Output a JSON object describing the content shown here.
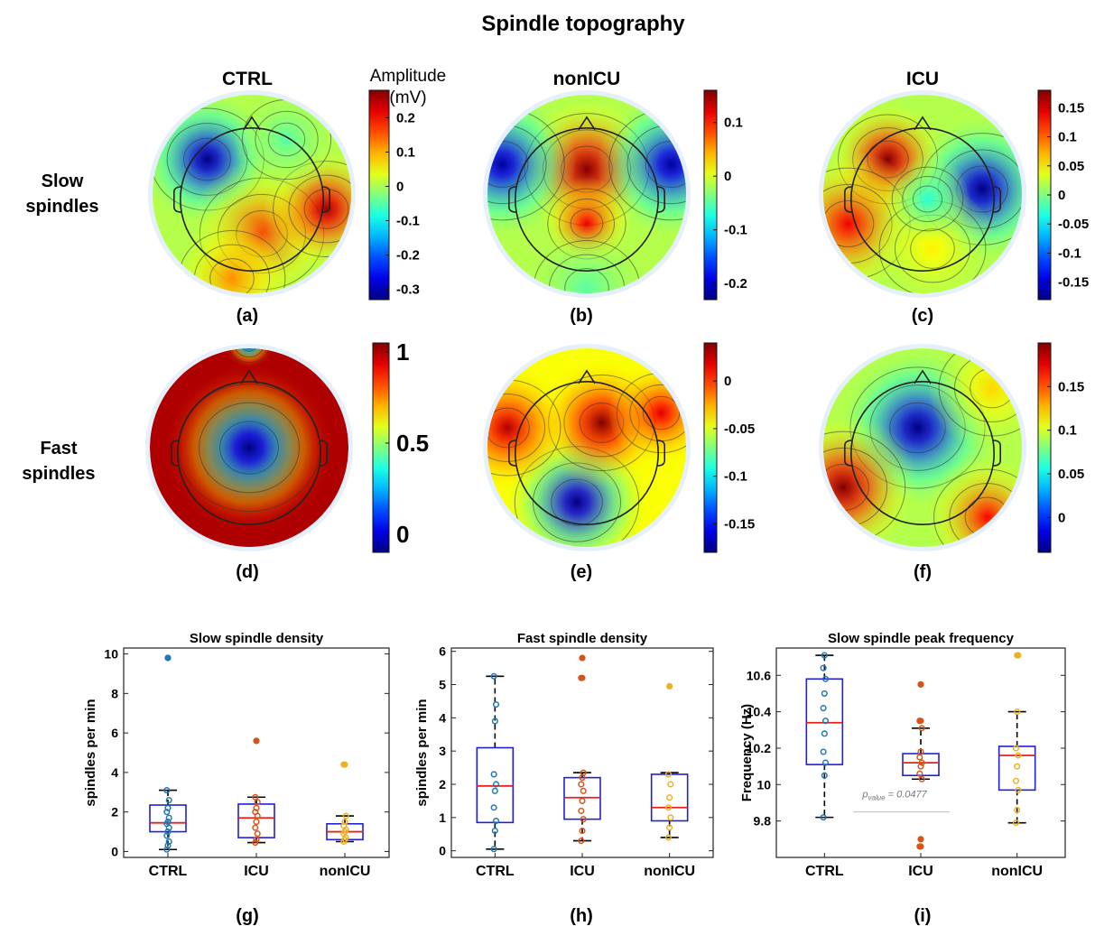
{
  "title": "Spindle topography",
  "colorbar_title": "Amplitude (mV)",
  "colors": {
    "box": "#1f1fd6",
    "median": "#e8201a",
    "whisker": "#000000",
    "ctrl_points": "#1f77b4",
    "icu_points": "#d95319",
    "nonicu_points": "#edb120",
    "p_line": "#bbbbbb"
  },
  "chart_data": [
    {
      "type": "heatmap",
      "subplot_label": "(a)",
      "title": "CTRL",
      "row_label": "Slow spindles",
      "colorbar_ticks": [
        "0.2",
        "0.1",
        "0",
        "-0.1",
        "-0.2",
        "-0.3"
      ],
      "colorbar_range": [
        -0.33,
        0.28
      ],
      "colormap": "jet",
      "pattern": [
        {
          "x": -0.45,
          "y": -0.35,
          "value": -0.33,
          "spread": 0.32
        },
        {
          "x": 0.1,
          "y": 0.4,
          "value": 0.18,
          "spread": 0.35
        },
        {
          "x": 0.75,
          "y": 0.15,
          "value": 0.26,
          "spread": 0.3
        },
        {
          "x": -0.2,
          "y": 0.85,
          "value": 0.12,
          "spread": 0.3
        },
        {
          "x": 0.35,
          "y": -0.55,
          "value": -0.05,
          "spread": 0.25
        }
      ]
    },
    {
      "type": "heatmap",
      "subplot_label": "(b)",
      "title": "nonICU",
      "colorbar_ticks": [
        "0.1",
        "0",
        "-0.1",
        "-0.2"
      ],
      "colorbar_range": [
        -0.23,
        0.16
      ],
      "colormap": "jet",
      "pattern": [
        {
          "x": 0.0,
          "y": -0.25,
          "value": 0.16,
          "spread": 0.35
        },
        {
          "x": 0.0,
          "y": 0.3,
          "value": 0.12,
          "spread": 0.22
        },
        {
          "x": -0.85,
          "y": -0.3,
          "value": -0.22,
          "spread": 0.35
        },
        {
          "x": 0.85,
          "y": -0.3,
          "value": -0.22,
          "spread": 0.35
        },
        {
          "x": 0.0,
          "y": 0.95,
          "value": -0.05,
          "spread": 0.3
        }
      ]
    },
    {
      "type": "heatmap",
      "subplot_label": "(c)",
      "title": "ICU",
      "colorbar_ticks": [
        "0.15",
        "0.1",
        "0.05",
        "0",
        "-0.05",
        "-0.1",
        "-0.15"
      ],
      "colorbar_range": [
        -0.18,
        0.18
      ],
      "colormap": "jet",
      "pattern": [
        {
          "x": -0.35,
          "y": -0.35,
          "value": 0.18,
          "spread": 0.28
        },
        {
          "x": -0.75,
          "y": 0.3,
          "value": 0.14,
          "spread": 0.35
        },
        {
          "x": 0.6,
          "y": -0.05,
          "value": -0.18,
          "spread": 0.35
        },
        {
          "x": 0.1,
          "y": 0.55,
          "value": 0.05,
          "spread": 0.3
        },
        {
          "x": 0.05,
          "y": 0.05,
          "value": -0.03,
          "spread": 0.2
        }
      ]
    },
    {
      "type": "heatmap",
      "subplot_label": "(d)",
      "row_label": "Fast spindles",
      "colorbar_ticks": [
        "1",
        "0.5",
        "0"
      ],
      "colorbar_range": [
        -0.1,
        1.05
      ],
      "colormap": "jet",
      "pattern": [
        {
          "x": 0.0,
          "y": 0.0,
          "value": -0.1,
          "spread": 0.4
        },
        {
          "x": 0.0,
          "y": -1.05,
          "value": 0.0,
          "spread": 0.12
        }
      ]
    },
    {
      "type": "heatmap",
      "subplot_label": "(e)",
      "colorbar_ticks": [
        "0",
        "-0.05",
        "-0.1",
        "-0.15"
      ],
      "colorbar_range": [
        -0.18,
        0.04
      ],
      "colormap": "jet",
      "pattern": [
        {
          "x": -0.1,
          "y": 0.55,
          "value": -0.18,
          "spread": 0.35
        },
        {
          "x": 0.15,
          "y": -0.25,
          "value": 0.04,
          "spread": 0.3
        },
        {
          "x": -0.8,
          "y": -0.2,
          "value": 0.03,
          "spread": 0.3
        },
        {
          "x": 0.75,
          "y": -0.35,
          "value": 0.02,
          "spread": 0.25
        }
      ]
    },
    {
      "type": "heatmap",
      "subplot_label": "(f)",
      "colorbar_ticks": [
        "0.15",
        "0.1",
        "0.05",
        "0"
      ],
      "colorbar_range": [
        -0.04,
        0.2
      ],
      "colormap": "jet",
      "pattern": [
        {
          "x": -0.05,
          "y": -0.2,
          "value": -0.04,
          "spread": 0.38
        },
        {
          "x": -0.8,
          "y": 0.4,
          "value": 0.2,
          "spread": 0.35
        },
        {
          "x": 0.65,
          "y": 0.7,
          "value": 0.17,
          "spread": 0.3
        },
        {
          "x": 0.7,
          "y": -0.6,
          "value": 0.12,
          "spread": 0.3
        }
      ]
    },
    {
      "type": "box",
      "subplot_label": "(g)",
      "title": "Slow spindle density",
      "ylabel": "spindles per min",
      "categories": [
        "CTRL",
        "ICU",
        "nonICU"
      ],
      "ylim": [
        -0.3,
        10.3
      ],
      "yticks": [
        0,
        2,
        4,
        6,
        8,
        10
      ],
      "series": [
        {
          "q1": 1.0,
          "median": 1.45,
          "q3": 2.35,
          "whisker_low": 0.1,
          "whisker_high": 3.1,
          "outliers": [
            9.8
          ],
          "points": [
            0.1,
            0.3,
            0.5,
            0.8,
            1.0,
            1.2,
            1.4,
            1.5,
            1.7,
            2.0,
            2.2,
            2.6,
            3.1,
            9.8
          ]
        },
        {
          "q1": 0.7,
          "median": 1.7,
          "q3": 2.4,
          "whisker_low": 0.45,
          "whisker_high": 2.75,
          "outliers": [
            5.6
          ],
          "points": [
            0.45,
            0.6,
            0.9,
            1.2,
            1.5,
            1.8,
            2.0,
            2.2,
            2.5,
            2.75,
            5.6
          ]
        },
        {
          "q1": 0.6,
          "median": 1.0,
          "q3": 1.4,
          "whisker_low": 0.5,
          "whisker_high": 1.8,
          "outliers": [
            4.4
          ],
          "points": [
            0.5,
            0.6,
            0.7,
            0.9,
            1.0,
            1.1,
            1.3,
            1.5,
            1.8,
            4.4
          ]
        }
      ]
    },
    {
      "type": "box",
      "subplot_label": "(h)",
      "title": "Fast spindle density",
      "ylabel": "spindles per min",
      "categories": [
        "CTRL",
        "ICU",
        "nonICU"
      ],
      "ylim": [
        -0.2,
        6.1
      ],
      "yticks": [
        0,
        1,
        2,
        3,
        4,
        5,
        6
      ],
      "series": [
        {
          "q1": 0.85,
          "median": 1.95,
          "q3": 3.1,
          "whisker_low": 0.05,
          "whisker_high": 5.25,
          "outliers": [],
          "points": [
            0.05,
            0.6,
            0.9,
            1.3,
            1.8,
            2.0,
            2.3,
            3.9,
            4.4,
            5.25
          ]
        },
        {
          "q1": 0.95,
          "median": 1.6,
          "q3": 2.2,
          "whisker_low": 0.3,
          "whisker_high": 2.35,
          "outliers": [
            5.2,
            5.8
          ],
          "points": [
            0.3,
            0.6,
            0.95,
            1.2,
            1.5,
            1.8,
            2.0,
            2.2,
            2.35,
            5.2,
            5.8
          ]
        },
        {
          "q1": 0.9,
          "median": 1.3,
          "q3": 2.3,
          "whisker_low": 0.4,
          "whisker_high": 2.35,
          "outliers": [
            4.95
          ],
          "points": [
            0.4,
            0.7,
            1.0,
            1.3,
            1.6,
            2.0,
            2.3,
            4.95
          ]
        }
      ]
    },
    {
      "type": "box",
      "subplot_label": "(i)",
      "title": "Slow spindle peak frequency",
      "ylabel": "Frequency (Hz)",
      "categories": [
        "CTRL",
        "ICU",
        "nonICU"
      ],
      "ylim": [
        9.6,
        10.75
      ],
      "yticks": [
        9.8,
        10,
        10.2,
        10.4,
        10.6
      ],
      "annotation": "p_value = 0.0477",
      "annotation_base": "p",
      "annotation_subscript": "value",
      "annotation_rest": " = 0.0477",
      "series": [
        {
          "q1": 10.11,
          "median": 10.34,
          "q3": 10.58,
          "whisker_low": 9.82,
          "whisker_high": 10.71,
          "outliers": [],
          "points": [
            9.82,
            10.05,
            10.12,
            10.18,
            10.28,
            10.35,
            10.42,
            10.5,
            10.58,
            10.64,
            10.71
          ]
        },
        {
          "q1": 10.05,
          "median": 10.12,
          "q3": 10.17,
          "whisker_low": 10.03,
          "whisker_high": 10.31,
          "outliers": [
            9.66,
            9.7,
            10.35,
            10.55
          ],
          "points": [
            9.66,
            9.7,
            10.03,
            10.06,
            10.1,
            10.12,
            10.15,
            10.18,
            10.31,
            10.35,
            10.55
          ]
        },
        {
          "q1": 9.97,
          "median": 10.16,
          "q3": 10.21,
          "whisker_low": 9.79,
          "whisker_high": 10.4,
          "outliers": [
            10.71
          ],
          "points": [
            9.79,
            9.86,
            9.97,
            10.02,
            10.1,
            10.16,
            10.2,
            10.4,
            10.71
          ]
        }
      ]
    }
  ]
}
